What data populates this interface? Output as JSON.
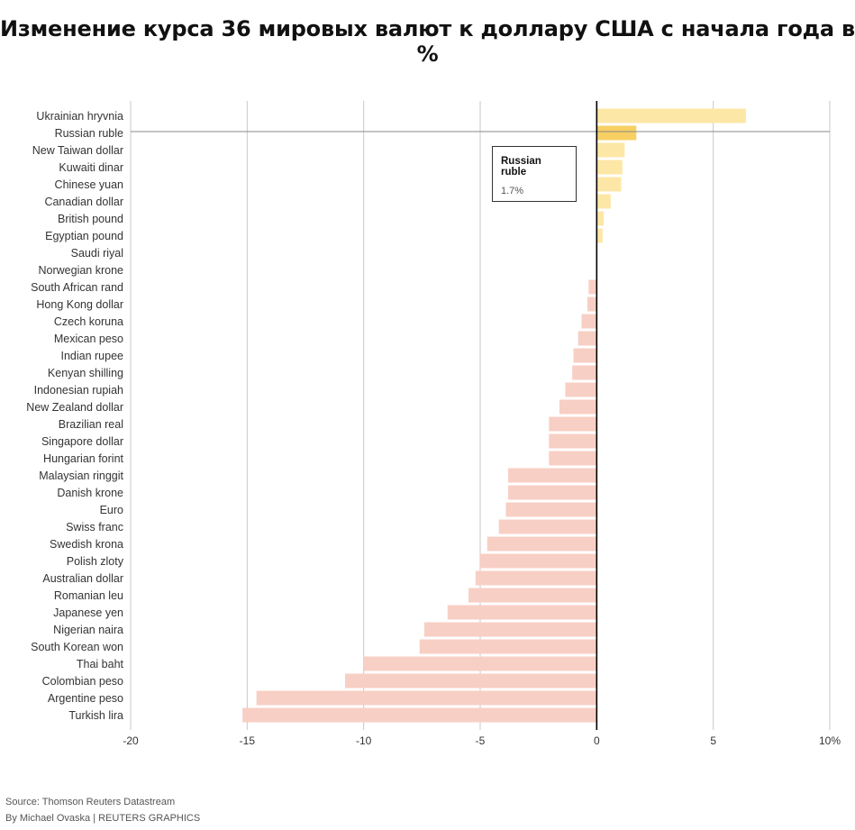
{
  "title": "Изменение курса 36 мировых валют к доллару США с начала года в %",
  "chart_data": {
    "type": "bar",
    "orientation": "horizontal",
    "title": "Изменение курса 36 мировых валют к доллару США с начала года в %",
    "xlim": [
      -20,
      10
    ],
    "x_ticks": [
      "-20",
      "-15",
      "-10",
      "-5",
      "0",
      "5",
      "10%"
    ],
    "grid": "vertical",
    "highlighted": "Russian ruble",
    "colors": {
      "positive": "#fde7a6",
      "highlight": "#f8cf63",
      "negative": "#f8cfc4",
      "zero_line": "#000000",
      "grid": "#c8c8c8"
    },
    "categories": [
      "Ukrainian hryvnia",
      "Russian ruble",
      "New Taiwan dollar",
      "Kuwaiti dinar",
      "Chinese yuan",
      "Canadian dollar",
      "British pound",
      "Egyptian pound",
      "Saudi riyal",
      "Norwegian krone",
      "South African rand",
      "Hong Kong dollar",
      "Czech koruna",
      "Mexican peso",
      "Indian rupee",
      "Kenyan shilling",
      "Indonesian rupiah",
      "New Zealand dollar",
      "Brazilian real",
      "Singapore dollar",
      "Hungarian forint",
      "Malaysian ringgit",
      "Danish krone",
      "Euro",
      "Swiss franc",
      "Swedish krona",
      "Polish zloty",
      "Australian dollar",
      "Romanian leu",
      "Japanese yen",
      "Nigerian naira",
      "South Korean won",
      "Thai baht",
      "Colombian peso",
      "Argentine peso",
      "Turkish lira"
    ],
    "values": [
      6.4,
      1.7,
      1.2,
      1.1,
      1.05,
      0.6,
      0.3,
      0.25,
      0.0,
      0.0,
      -0.35,
      -0.4,
      -0.65,
      -0.8,
      -1.0,
      -1.05,
      -1.35,
      -1.6,
      -2.05,
      -2.05,
      -2.05,
      -3.8,
      -3.8,
      -3.9,
      -4.2,
      -4.7,
      -5.0,
      -5.2,
      -5.5,
      -6.4,
      -7.4,
      -7.6,
      -10.0,
      -10.8,
      -14.6,
      -15.2
    ],
    "tooltip": {
      "name": "Russian ruble",
      "value": "1.7%"
    }
  },
  "footer": {
    "source": "Source: Thomson Reuters Datastream",
    "byline": "By Michael Ovaska | REUTERS GRAPHICS"
  }
}
